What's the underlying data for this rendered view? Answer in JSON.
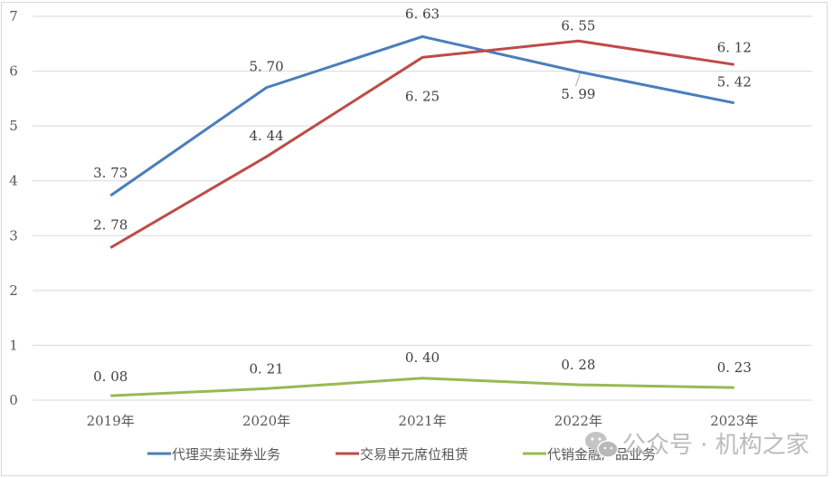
{
  "chart_data": {
    "type": "line",
    "title": "",
    "xlabel": "",
    "ylabel": "",
    "categories": [
      "2019年",
      "2020年",
      "2021年",
      "2022年",
      "2023年"
    ],
    "ylim": [
      0,
      7
    ],
    "yticks": [
      0,
      1,
      2,
      3,
      4,
      5,
      6,
      7
    ],
    "grid": true,
    "legend_position": "bottom",
    "series": [
      {
        "name": "代理买卖证券业务",
        "color": "#4a7ebb",
        "values": [
          3.73,
          5.7,
          6.63,
          5.99,
          5.42
        ]
      },
      {
        "name": "交易单元席位租赁",
        "color": "#be4b48",
        "values": [
          2.78,
          4.44,
          6.25,
          6.55,
          6.12
        ]
      },
      {
        "name": "代销金融产品业务",
        "color": "#98b954",
        "values": [
          0.08,
          0.21,
          0.4,
          0.28,
          0.23
        ]
      }
    ],
    "data_labels": [
      [
        "3.73",
        "5.70",
        "6.63",
        "5.99",
        "5.42"
      ],
      [
        "2.78",
        "4.44",
        "6.25",
        "6.55",
        "6.12"
      ],
      [
        "0.08",
        "0.21",
        "0.40",
        "0.28",
        "0.23"
      ]
    ]
  },
  "watermark": "公众号 · 机构之家"
}
